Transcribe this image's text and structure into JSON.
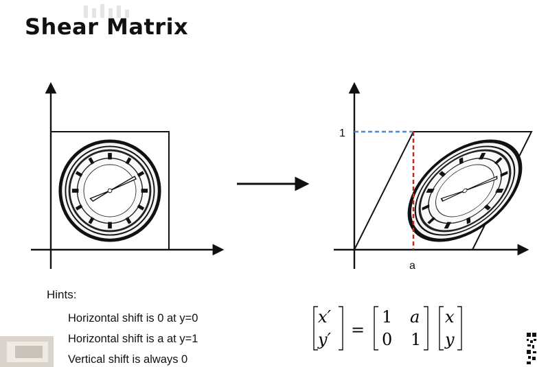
{
  "title": "Shear Matrix",
  "labels": {
    "y_one": "1",
    "x_a": "a"
  },
  "hints": {
    "heading": "Hints:",
    "items": [
      "Horizontal shift is 0 at y=0",
      "Horizontal shift is a at y=1",
      "Vertical shift is always 0"
    ]
  },
  "equation": {
    "lhs": [
      "x′",
      "y′"
    ],
    "equals": "=",
    "matrix": [
      [
        "1",
        "a"
      ],
      [
        "0",
        "1"
      ]
    ],
    "rhs": [
      "x",
      "y"
    ]
  },
  "icons": [
    "clock-icon",
    "arrow-right-icon",
    "qr-code-icon"
  ],
  "colors": {
    "dashed_blue": "#4a8ad8",
    "dashed_red": "#cc2222"
  }
}
